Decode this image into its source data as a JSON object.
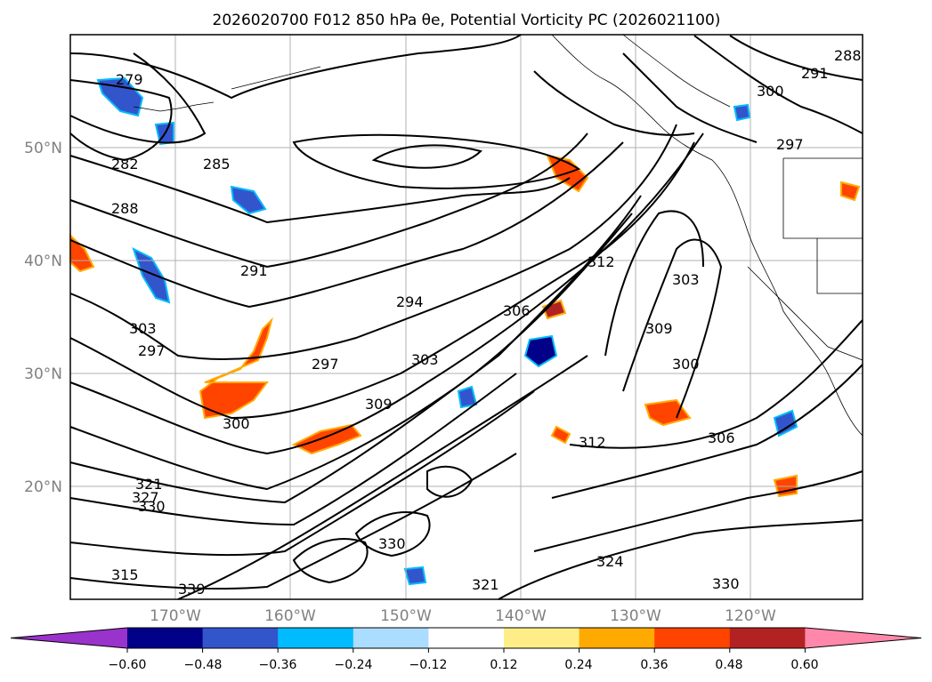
{
  "title": "2026020700 F012 850 hPa θe, Potential Vorticity PC (2026021100)",
  "map": {
    "lat_labels": [
      "50°N",
      "40°N",
      "30°N",
      "20°N"
    ],
    "lon_labels": [
      "170°W",
      "160°W",
      "150°W",
      "140°W",
      "130°W",
      "120°W"
    ]
  },
  "contour_labels": [
    "279",
    "282",
    "285",
    "288",
    "291",
    "294",
    "297",
    "297",
    "300",
    "303",
    "303",
    "306",
    "309",
    "312",
    "312",
    "300",
    "306",
    "309",
    "303",
    "300",
    "291",
    "288",
    "297",
    "321",
    "330",
    "327",
    "324",
    "321",
    "330",
    "330",
    "315",
    "339"
  ],
  "colorbar": {
    "tick_labels": [
      "−0.60",
      "−0.48",
      "−0.36",
      "−0.24",
      "−0.12",
      "0.12",
      "0.24",
      "0.36",
      "0.48",
      "0.60"
    ],
    "colors": [
      "#9933cc",
      "#000088",
      "#3355cc",
      "#00bbff",
      "#aaddff",
      "#ffffff",
      "#ffee88",
      "#ffaa00",
      "#ff4400",
      "#b22222",
      "#ff88aa"
    ]
  }
}
